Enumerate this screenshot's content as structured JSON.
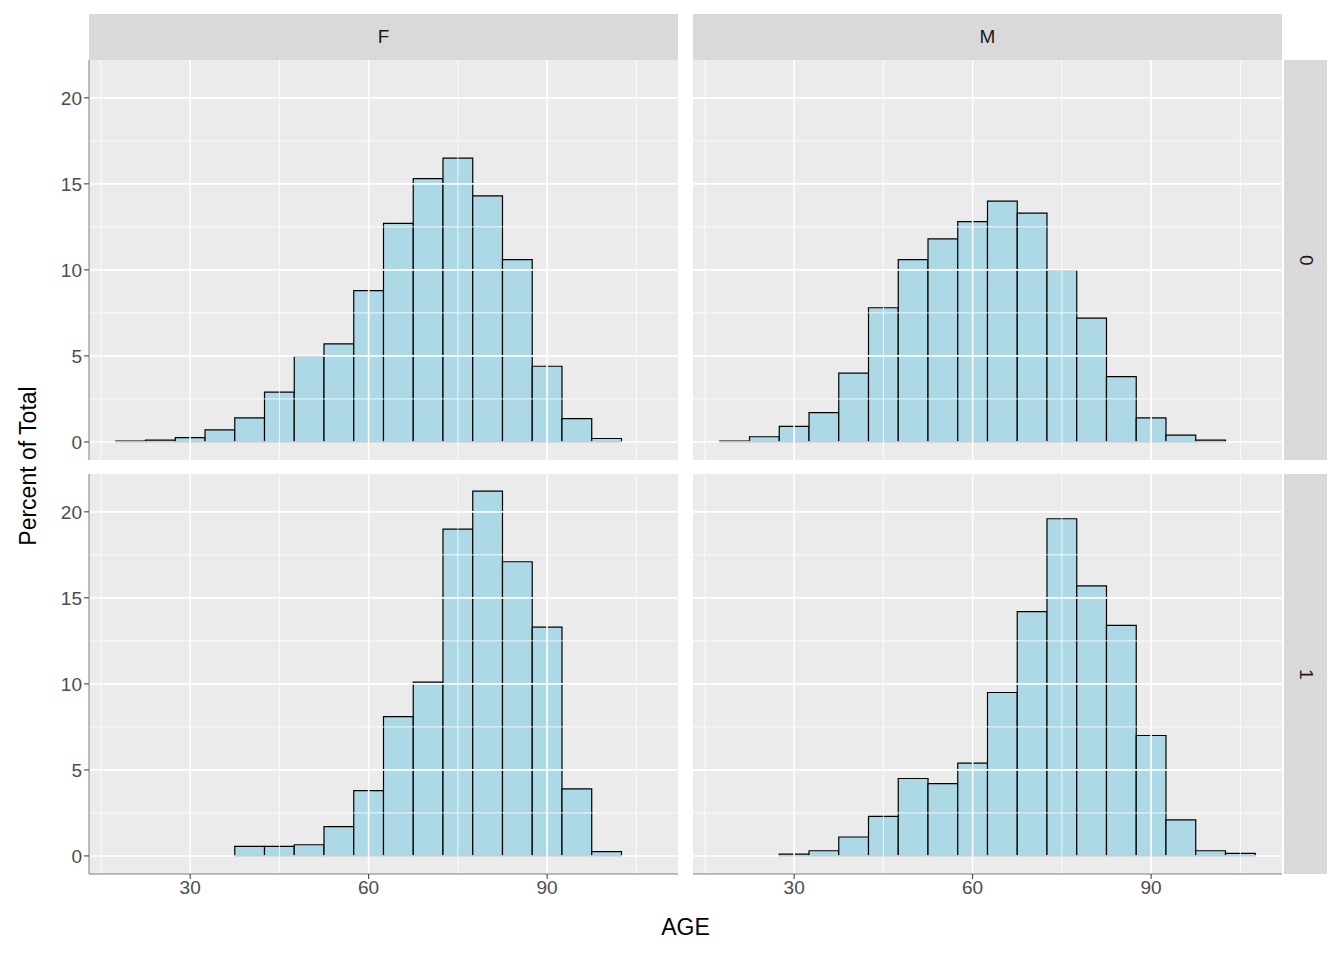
{
  "chart_data": {
    "type": "histogram",
    "x_label": "AGE",
    "y_label": "Percent of Total",
    "columns": [
      "F",
      "M"
    ],
    "rows": [
      "0",
      "1"
    ],
    "bins": [
      17.5,
      22.5,
      27.5,
      32.5,
      37.5,
      42.5,
      47.5,
      52.5,
      57.5,
      62.5,
      67.5,
      72.5,
      77.5,
      82.5,
      87.5,
      92.5,
      97.5,
      102.5,
      107.5
    ],
    "panels": [
      {
        "column": "F",
        "row": "0",
        "values": [
          0.05,
          0.1,
          0.25,
          0.7,
          1.4,
          2.9,
          5.0,
          5.7,
          8.8,
          12.7,
          15.3,
          16.5,
          14.3,
          10.6,
          4.4,
          1.35,
          0.2,
          0.0
        ]
      },
      {
        "column": "M",
        "row": "0",
        "values": [
          0.05,
          0.3,
          0.9,
          1.7,
          4.0,
          7.8,
          10.6,
          11.8,
          12.8,
          14.0,
          13.3,
          10.0,
          7.2,
          3.8,
          1.4,
          0.4,
          0.1,
          0.0
        ]
      },
      {
        "column": "F",
        "row": "1",
        "values": [
          0.0,
          0.0,
          0.0,
          0.0,
          0.55,
          0.55,
          0.65,
          1.7,
          3.8,
          8.1,
          10.1,
          19.0,
          21.2,
          17.1,
          13.3,
          3.9,
          0.25,
          0.0
        ]
      },
      {
        "column": "M",
        "row": "1",
        "values": [
          0.0,
          0.0,
          0.1,
          0.3,
          1.1,
          2.3,
          4.5,
          4.2,
          5.4,
          9.5,
          14.2,
          19.6,
          15.7,
          13.4,
          7.0,
          2.1,
          0.3,
          0.15
        ]
      }
    ],
    "xlim": [
      13,
      112
    ],
    "xticks": [
      30,
      60,
      90
    ],
    "ylim": [
      -1.05,
      22.2
    ],
    "yticks": [
      0,
      5,
      10,
      15,
      20
    ],
    "color": "#add8e6",
    "grid": true
  }
}
